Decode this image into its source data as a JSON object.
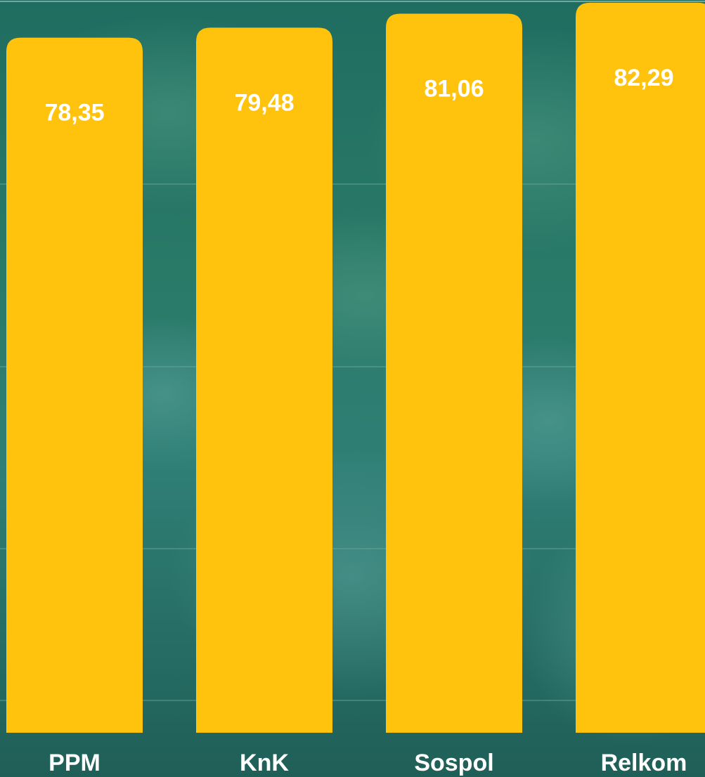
{
  "chart_data": {
    "type": "bar",
    "categories": [
      "PPM",
      "KnK",
      "Sospol",
      "Relkom"
    ],
    "values": [
      78.35,
      79.48,
      81.06,
      82.29
    ],
    "value_labels": [
      "78,35",
      "79,48",
      "81,06",
      "82,29"
    ],
    "grid": true,
    "colors": {
      "bar": "#ffc30d",
      "background": "#1e6b5f",
      "gridline": "#6fa89a",
      "text": "#ffffff"
    }
  }
}
